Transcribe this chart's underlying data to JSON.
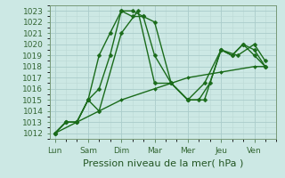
{
  "xlabel": "Pression niveau de la mer( hPa )",
  "days": [
    "Lun",
    "Sam",
    "Dim",
    "Mar",
    "Mer",
    "Jeu",
    "Ven"
  ],
  "ylim": [
    1011.5,
    1023.5
  ],
  "yticks": [
    1012,
    1013,
    1014,
    1015,
    1016,
    1017,
    1018,
    1019,
    1020,
    1021,
    1022,
    1023
  ],
  "xlim": [
    -0.15,
    6.6
  ],
  "series": [
    {
      "x": [
        0,
        0.33,
        0.66,
        1.0,
        1.33,
        1.66,
        2.0,
        2.33,
        2.66,
        3.0,
        3.5,
        4.0,
        4.33,
        4.66,
        5.0,
        5.33,
        5.66,
        6.0,
        6.33
      ],
      "y": [
        1012,
        1013,
        1013,
        1015,
        1019,
        1021,
        1023,
        1023,
        1022.5,
        1022,
        1016.5,
        1015,
        1015,
        1016.5,
        1019.5,
        1019,
        1020,
        1019,
        1018
      ],
      "color": "#1a6b1a",
      "linewidth": 1.0,
      "markersize": 2.5
    },
    {
      "x": [
        0,
        0.33,
        0.66,
        1.0,
        1.33,
        1.66,
        2.0,
        2.33,
        2.66,
        3.0,
        3.5,
        4.0,
        4.5,
        5.0,
        5.33,
        5.66,
        6.0,
        6.33
      ],
      "y": [
        1012,
        1013,
        1013,
        1015,
        1016,
        1019,
        1023,
        1022.5,
        1022.5,
        1019,
        1016.5,
        1015,
        1015,
        1019.5,
        1019,
        1020,
        1019.5,
        1018
      ],
      "color": "#1a6b1a",
      "linewidth": 1.0,
      "markersize": 2.5
    },
    {
      "x": [
        0,
        0.33,
        0.66,
        1.0,
        1.33,
        2.0,
        2.5,
        3.0,
        3.5,
        4.0,
        4.5,
        5.0,
        5.5,
        6.0,
        6.33
      ],
      "y": [
        1012,
        1013,
        1013,
        1015,
        1014,
        1021,
        1023,
        1016.5,
        1016.5,
        1015,
        1016.5,
        1019.5,
        1019,
        1020,
        1018.5
      ],
      "color": "#1a6b1a",
      "linewidth": 1.0,
      "markersize": 2.5
    },
    {
      "x": [
        0,
        0.66,
        1.33,
        2.0,
        3.0,
        4.0,
        5.0,
        6.0,
        6.33
      ],
      "y": [
        1012,
        1013,
        1014,
        1015,
        1016,
        1017,
        1017.5,
        1018,
        1018
      ],
      "color": "#1a6b1a",
      "linewidth": 1.0,
      "markersize": 2.0
    }
  ],
  "bg_color": "#cce8e4",
  "grid_major_color": "#aaccca",
  "grid_minor_color": "#bbd8d5",
  "spine_color": "#779977",
  "tick_color": "#336633",
  "label_color": "#225522",
  "xlabel_fontsize": 8,
  "tick_fontsize": 6.5
}
